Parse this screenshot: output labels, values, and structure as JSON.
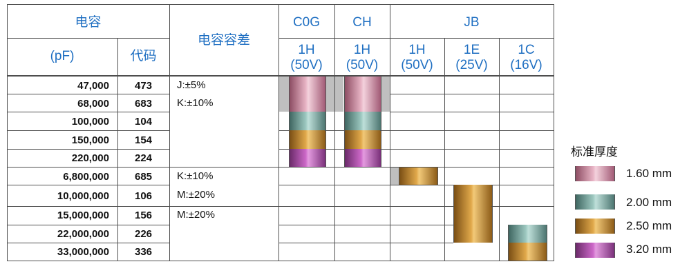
{
  "header": {
    "capacitance": "电容",
    "pf": "(pF)",
    "code": "代码",
    "tolerance": "电容容差",
    "c0g": "C0G",
    "ch": "CH",
    "jb": "JB",
    "v_c0g_1": "1H",
    "v_c0g_2": "(50V)",
    "v_ch_1": "1H",
    "v_ch_2": "(50V)",
    "v_jb1_1": "1H",
    "v_jb1_2": "(50V)",
    "v_jb2_1": "1E",
    "v_jb2_2": "(25V)",
    "v_jb3_1": "1C",
    "v_jb3_2": "(16V)"
  },
  "rows": [
    {
      "cap": "47,000",
      "code": "473"
    },
    {
      "cap": "68,000",
      "code": "683"
    },
    {
      "cap": "100,000",
      "code": "104"
    },
    {
      "cap": "150,000",
      "code": "154"
    },
    {
      "cap": "220,000",
      "code": "224"
    },
    {
      "cap": "6,800,000",
      "code": "685"
    },
    {
      "cap": "10,000,000",
      "code": "106"
    },
    {
      "cap": "15,000,000",
      "code": "156"
    },
    {
      "cap": "22,000,000",
      "code": "226"
    },
    {
      "cap": "33,000,000",
      "code": "336"
    }
  ],
  "tolerances": {
    "g1a": "J:±5%",
    "g1b": "K:±10%",
    "g2a": "K:±10%",
    "g2b": "M:±20%",
    "g3a": "M:±20%"
  },
  "legend": {
    "title": "标准厚度",
    "items": [
      {
        "label": "1.60 mm",
        "color": "#c96f93"
      },
      {
        "label": "2.00 mm",
        "color": "#5f8f87"
      },
      {
        "label": "2.50 mm",
        "color": "#b77a22"
      },
      {
        "label": "3.20 mm",
        "color": "#9b3f9a"
      }
    ]
  }
}
